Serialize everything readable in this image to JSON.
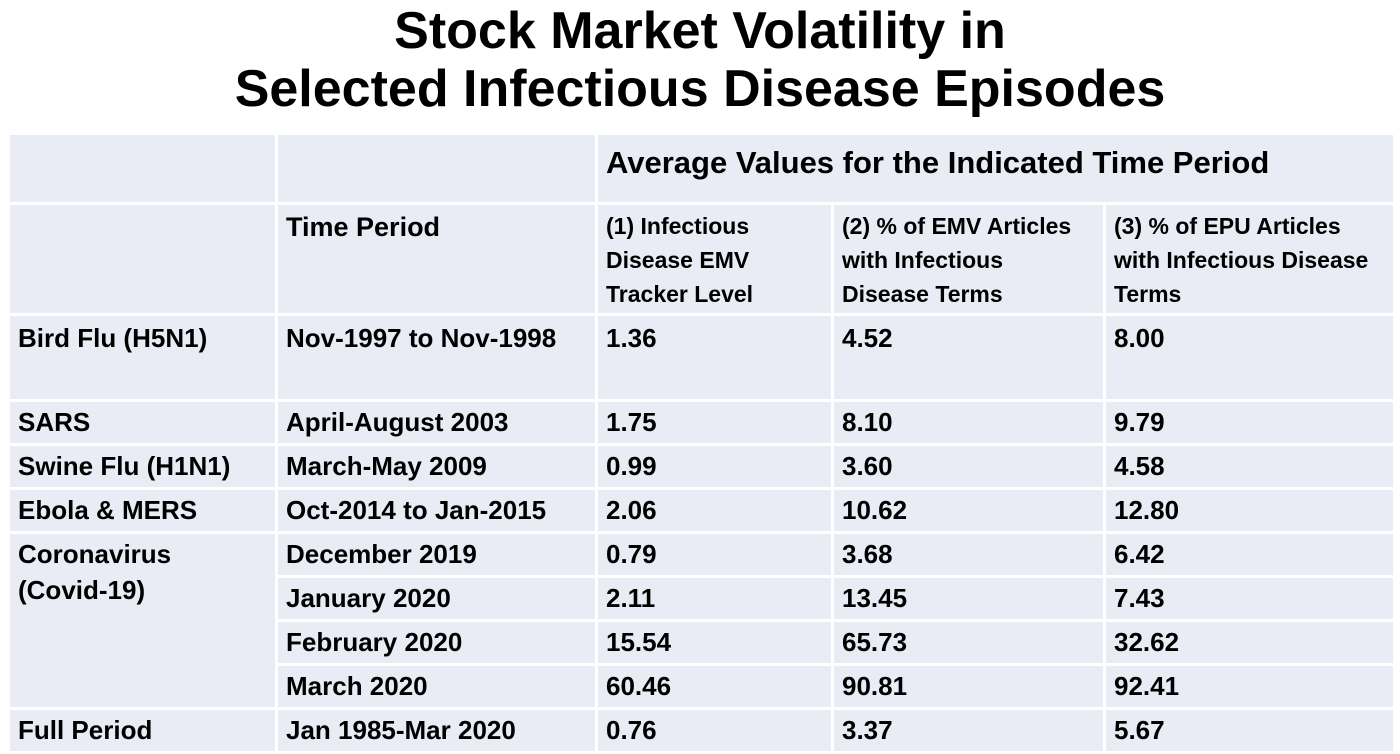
{
  "title": {
    "line1": "Stock Market Volatility in",
    "line2": "Selected Infectious Disease Episodes"
  },
  "table": {
    "group_header": "Average Values for the Indicated Time Period",
    "columns": {
      "time_period": "Time Period",
      "col1": "(1) Infectious Disease EMV Tracker Level",
      "col2": "(2) % of EMV Articles with Infectious Disease Terms",
      "col3": "(3) % of EPU Articles with Infectious Disease Terms"
    },
    "rows": [
      {
        "episode": "Bird Flu (H5N1)",
        "period": "Nov-1997 to Nov-1998",
        "v1": "1.36",
        "v2": "4.52",
        "v3": "8.00"
      },
      {
        "episode": "SARS",
        "period": "April-August 2003",
        "v1": "1.75",
        "v2": "8.10",
        "v3": "9.79"
      },
      {
        "episode": "Swine Flu (H1N1)",
        "period": "March-May 2009",
        "v1": "0.99",
        "v2": "3.60",
        "v3": "4.58"
      },
      {
        "episode": "Ebola & MERS",
        "period": "Oct-2014 to Jan-2015",
        "v1": "2.06",
        "v2": "10.62",
        "v3": "12.80"
      },
      {
        "episode": "Coronavirus (Covid-19)",
        "period": "December 2019",
        "v1": "0.79",
        "v2": "3.68",
        "v3": "6.42"
      },
      {
        "episode": "",
        "period": "January 2020",
        "v1": "2.11",
        "v2": "13.45",
        "v3": "7.43"
      },
      {
        "episode": "",
        "period": "February 2020",
        "v1": "15.54",
        "v2": "65.73",
        "v3": "32.62"
      },
      {
        "episode": "",
        "period": "March 2020",
        "v1": "60.46",
        "v2": "90.81",
        "v3": "92.41"
      },
      {
        "episode": "Full Period",
        "period": "Jan 1985-Mar 2020",
        "v1": "0.76",
        "v2": "3.37",
        "v3": "5.67"
      }
    ]
  },
  "colors": {
    "cell_bg": "#e9ebf5",
    "border": "#ffffff",
    "text": "#000000"
  }
}
